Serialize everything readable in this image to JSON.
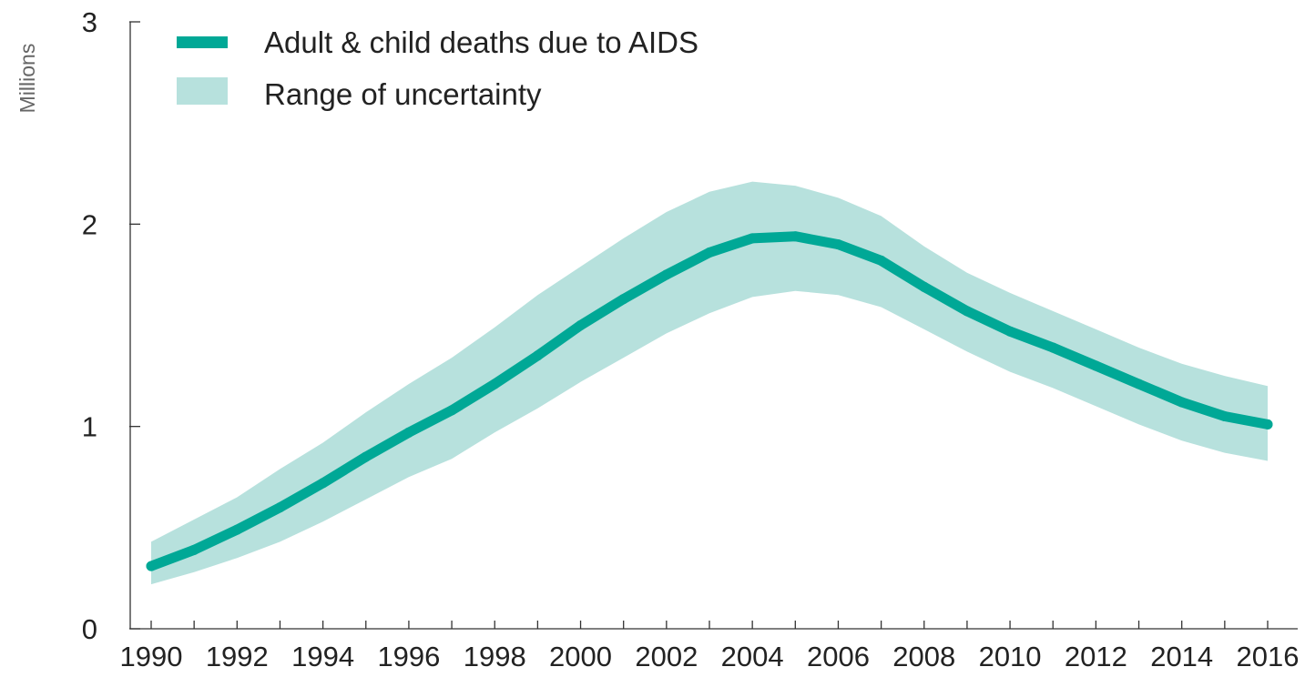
{
  "chart_data": {
    "type": "line",
    "title": "",
    "xlabel": "",
    "ylabel": "Millions",
    "xlim": [
      1990,
      2016
    ],
    "ylim": [
      0,
      3
    ],
    "yticks": [
      0,
      1,
      2,
      3
    ],
    "xticks": [
      1990,
      1992,
      1994,
      1996,
      1998,
      2000,
      2002,
      2004,
      2006,
      2008,
      2010,
      2012,
      2014,
      2016
    ],
    "grid": false,
    "legend_position": "top-left",
    "colors": {
      "line": "#00a896",
      "band": "#b7e1dd",
      "axis": "#333333"
    },
    "x": [
      1990,
      1991,
      1992,
      1993,
      1994,
      1995,
      1996,
      1997,
      1998,
      1999,
      2000,
      2001,
      2002,
      2003,
      2004,
      2005,
      2006,
      2007,
      2008,
      2009,
      2010,
      2011,
      2012,
      2013,
      2014,
      2015,
      2016
    ],
    "series": [
      {
        "name": "Adult & child deaths due to AIDS",
        "values": [
          0.31,
          0.39,
          0.49,
          0.6,
          0.72,
          0.85,
          0.97,
          1.08,
          1.21,
          1.35,
          1.5,
          1.63,
          1.75,
          1.86,
          1.93,
          1.94,
          1.9,
          1.82,
          1.69,
          1.57,
          1.47,
          1.39,
          1.3,
          1.21,
          1.12,
          1.05,
          1.01
        ],
        "lower": [
          0.22,
          0.28,
          0.35,
          0.43,
          0.53,
          0.64,
          0.75,
          0.84,
          0.97,
          1.09,
          1.22,
          1.34,
          1.46,
          1.56,
          1.64,
          1.67,
          1.65,
          1.59,
          1.48,
          1.37,
          1.27,
          1.19,
          1.1,
          1.01,
          0.93,
          0.87,
          0.83
        ],
        "upper": [
          0.43,
          0.54,
          0.65,
          0.79,
          0.92,
          1.07,
          1.21,
          1.34,
          1.49,
          1.65,
          1.79,
          1.93,
          2.06,
          2.16,
          2.21,
          2.19,
          2.13,
          2.04,
          1.89,
          1.76,
          1.66,
          1.57,
          1.48,
          1.39,
          1.31,
          1.25,
          1.2
        ]
      }
    ],
    "legend": [
      {
        "label": "Adult & child deaths due to AIDS",
        "kind": "line"
      },
      {
        "label": "Range of uncertainty",
        "kind": "band"
      }
    ]
  }
}
